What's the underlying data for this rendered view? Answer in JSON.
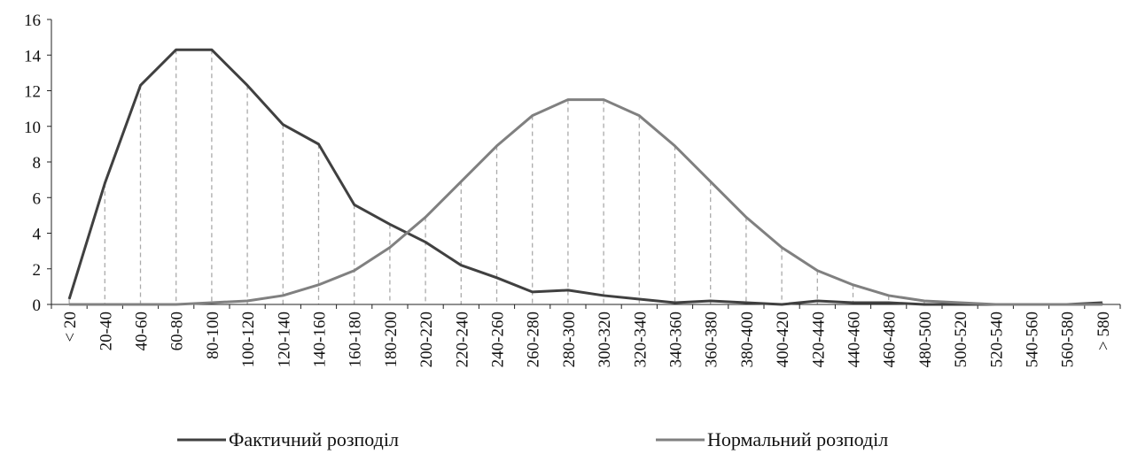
{
  "chart_data": {
    "type": "line",
    "categories": [
      "< 20",
      "20-40",
      "40-60",
      "60-80",
      "80-100",
      "100-120",
      "120-140",
      "140-160",
      "160-180",
      "180-200",
      "200-220",
      "220-240",
      "240-260",
      "260-280",
      "280-300",
      "300-320",
      "320-340",
      "340-360",
      "360-380",
      "380-400",
      "400-420",
      "420-440",
      "440-460",
      "460-480",
      "480-500",
      "500-520",
      "520-540",
      "540-560",
      "560-580",
      "> 580"
    ],
    "series": [
      {
        "name": "Фактичний розподіл",
        "color": "#404040",
        "values": [
          0.3,
          6.8,
          12.3,
          14.3,
          14.3,
          12.3,
          10.1,
          9.0,
          5.6,
          4.5,
          3.5,
          2.2,
          1.5,
          0.7,
          0.8,
          0.5,
          0.3,
          0.1,
          0.2,
          0.1,
          0,
          0.2,
          0.1,
          0.1,
          0,
          0,
          0,
          0,
          0,
          0.1
        ]
      },
      {
        "name": "Нормальний розподіл",
        "color": "#808080",
        "values": [
          0,
          0,
          0,
          0,
          0.1,
          0.2,
          0.5,
          1.1,
          1.9,
          3.2,
          4.9,
          6.9,
          8.9,
          10.6,
          11.5,
          11.5,
          10.6,
          8.9,
          6.9,
          4.9,
          3.2,
          1.9,
          1.1,
          0.5,
          0.2,
          0.1,
          0,
          0,
          0,
          0
        ]
      }
    ],
    "ylim": [
      0,
      16
    ],
    "yticks": [
      0,
      2,
      4,
      6,
      8,
      10,
      12,
      14,
      16
    ],
    "drop_lines": true
  }
}
